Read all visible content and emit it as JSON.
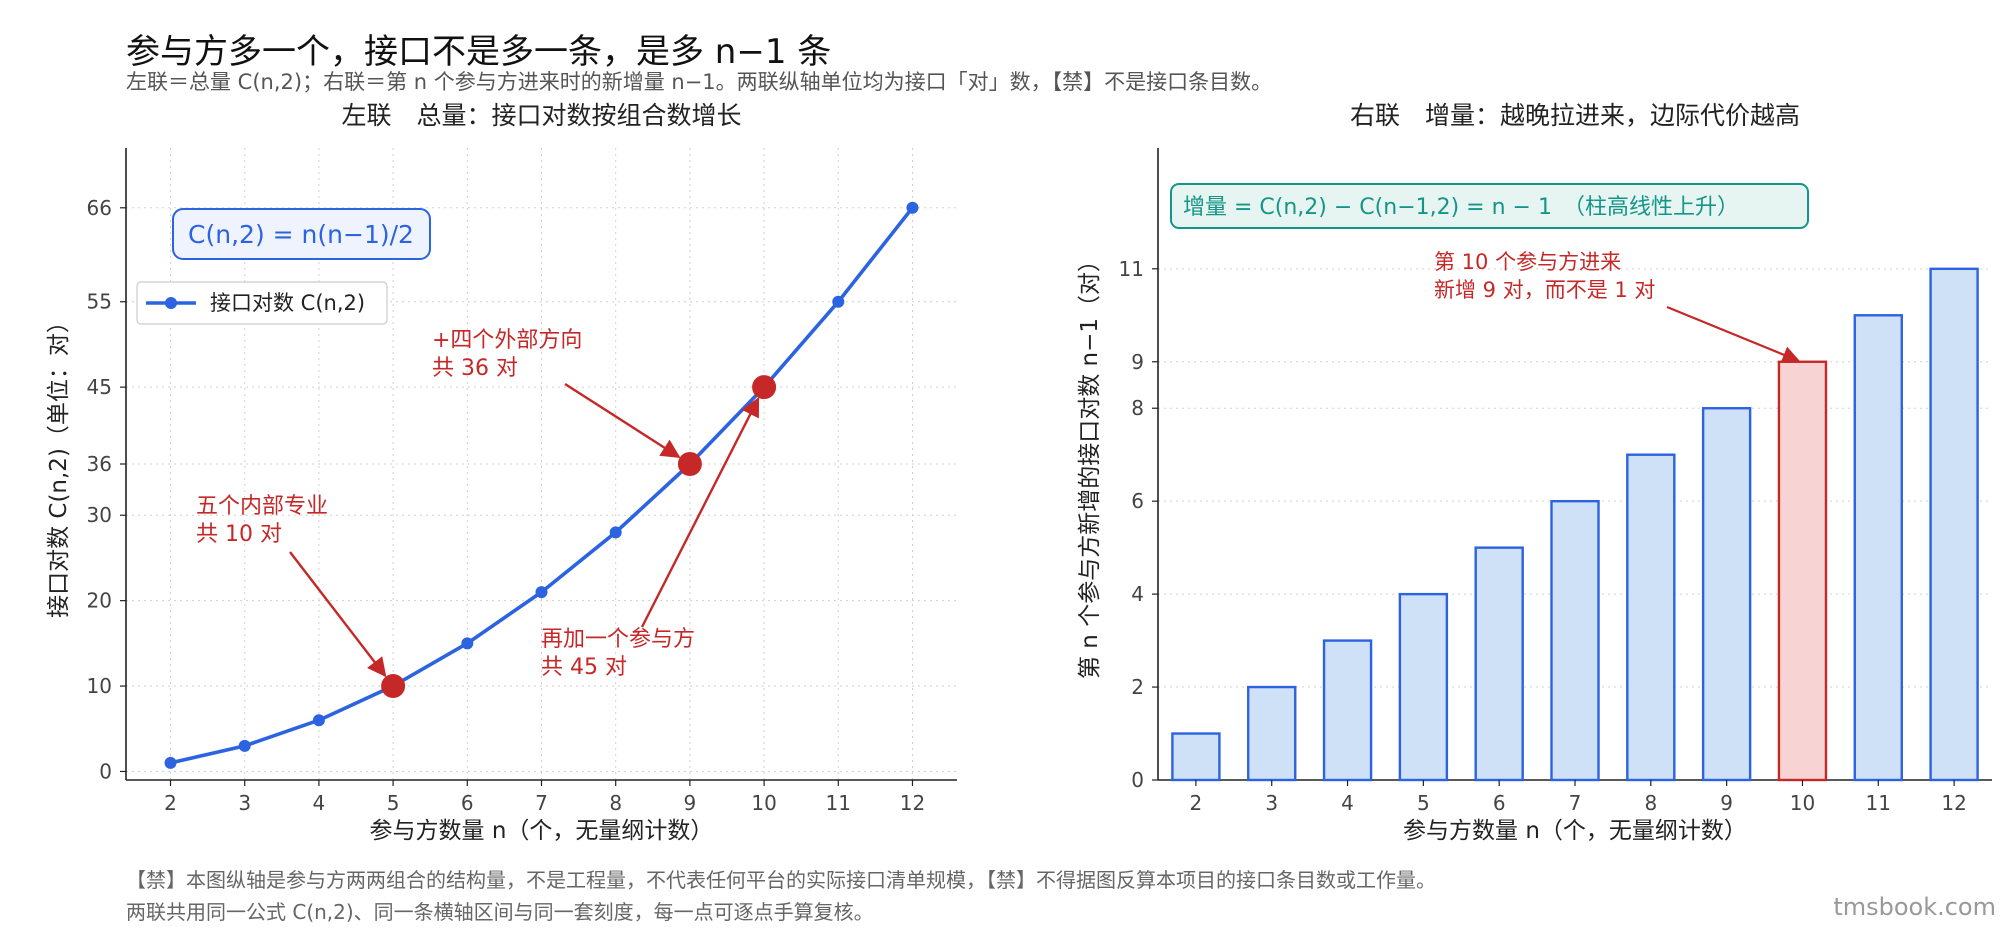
{
  "header": {
    "title": "参与方多一个，接口不是多一条，是多 n−1 条",
    "subtitle": "左联＝总量 C(n,2)；右联＝第 n 个参与方进来时的新增量 n−1。两联纵轴单位均为接口「对」数，【禁】不是接口条目数。"
  },
  "footer": {
    "line1": "【禁】本图纵轴是参与方两两组合的结构量，不是工程量，不代表任何平台的实际接口清单规模，【禁】不得据图反算本项目的接口条目数或工作量。",
    "line2": "两联共用同一公式 C(n,2)、同一条横轴区间与同一套刻度，每一点可逐点手算复核。",
    "watermark": "tmsbook.com"
  },
  "chart_data": [
    {
      "type": "line",
      "title": "左联　总量：接口对数按组合数增长",
      "xlabel": "参与方数量 n（个，无量纲计数）",
      "ylabel": "接口对数 C(n,2)（单位：对）",
      "x": [
        2,
        3,
        4,
        5,
        6,
        7,
        8,
        9,
        10,
        11,
        12
      ],
      "series": [
        {
          "name": "接口对数 C(n,2)",
          "values": [
            1,
            3,
            6,
            10,
            15,
            21,
            28,
            36,
            45,
            55,
            66
          ],
          "color": "#2b63e0"
        }
      ],
      "yticks": [
        0,
        10,
        20,
        30,
        36,
        45,
        55,
        66
      ],
      "xlim": [
        1.4,
        12.6
      ],
      "ylim": [
        -1,
        73
      ],
      "grid": true,
      "legend": "upper-left",
      "formula_box": "C(n,2) = n(n−1)/2",
      "highlight_color": "#c62828",
      "highlight_points": [
        5,
        9,
        10
      ],
      "annotations": [
        {
          "lines": [
            "五个内部专业",
            "共 10 对"
          ],
          "target": [
            5,
            10
          ]
        },
        {
          "lines": [
            "+四个外部方向",
            "共 36 对"
          ],
          "target": [
            9,
            36
          ]
        },
        {
          "lines": [
            "再加一个参与方",
            "共 45 对"
          ],
          "target": [
            10,
            45
          ]
        }
      ]
    },
    {
      "type": "bar",
      "title": "右联　增量：越晚拉进来，边际代价越高",
      "xlabel": "参与方数量 n（个，无量纲计数）",
      "ylabel": "第 n 个参与方新增的接口对数 n−1（对）",
      "categories": [
        "2",
        "3",
        "4",
        "5",
        "6",
        "7",
        "8",
        "9",
        "10",
        "11",
        "12"
      ],
      "values": [
        1,
        2,
        3,
        4,
        5,
        6,
        7,
        8,
        9,
        10,
        11
      ],
      "yticks": [
        0,
        2,
        4,
        6,
        8,
        9,
        11
      ],
      "ylim": [
        0,
        13.6
      ],
      "grid": true,
      "formula_box": "增量 = C(n,2) − C(n−1,2) = n − 1　（柱高线性上升）",
      "bar_fill": "#cfe1f7",
      "bar_edge": "#2b63e0",
      "highlight_category": "10",
      "highlight_fill": "#f8d3d3",
      "highlight_edge": "#c62828",
      "annotations": [
        {
          "lines": [
            "第 10 个参与方进来",
            "新增 9 对，而不是 1 对"
          ],
          "target": [
            "10",
            9
          ]
        }
      ]
    }
  ]
}
